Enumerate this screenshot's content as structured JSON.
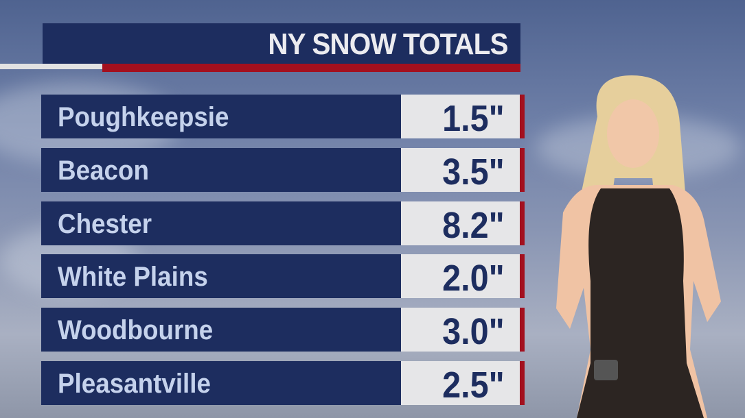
{
  "title": "NY SNOW TOTALS",
  "rows": [
    {
      "location": "Poughkeepsie",
      "total": "1.5\""
    },
    {
      "location": "Beacon",
      "total": "3.5\""
    },
    {
      "location": "Chester",
      "total": "8.2\""
    },
    {
      "location": "White Plains",
      "total": "2.0\""
    },
    {
      "location": "Woodbourne",
      "total": "3.0\""
    },
    {
      "location": "Pleasantville",
      "total": "2.5\""
    }
  ],
  "colors": {
    "navy": "#1d2d5f",
    "red": "#a3101e",
    "value_bg": "#e6e6e8",
    "name_text": "#c5d2ec"
  }
}
